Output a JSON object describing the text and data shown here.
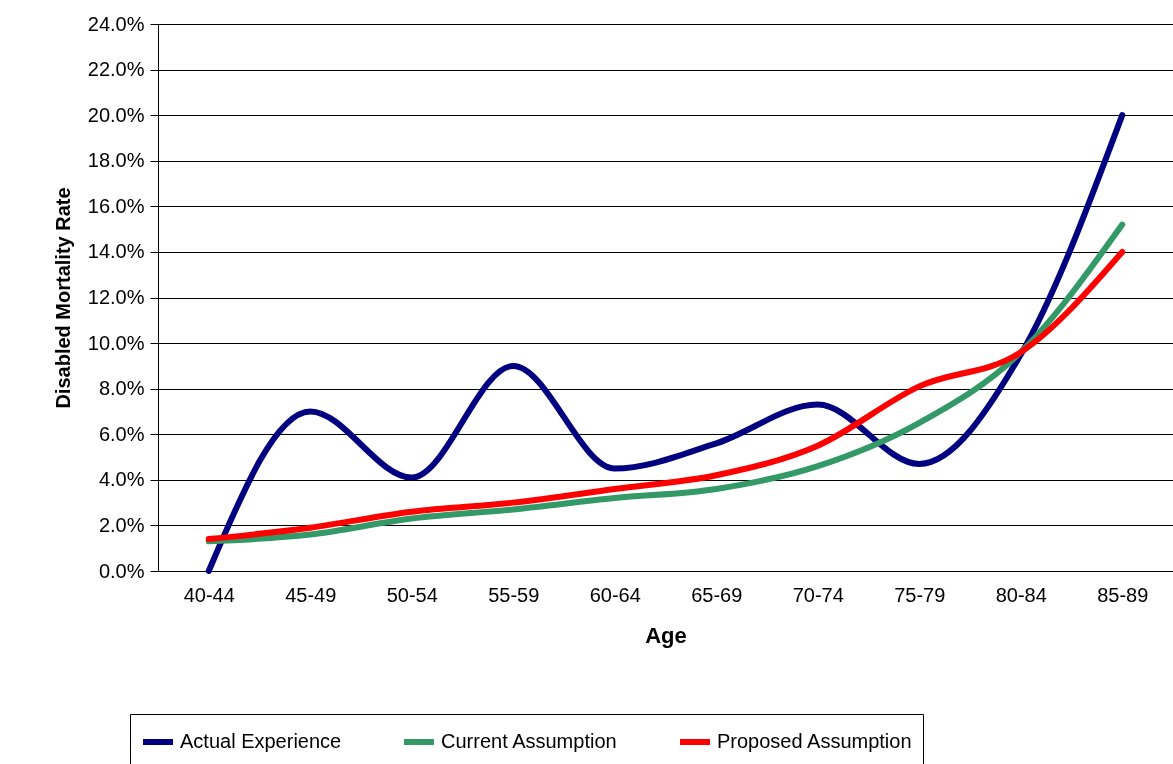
{
  "chart_data": {
    "type": "line",
    "xlabel": "Age",
    "ylabel": "Disabled Mortality Rate",
    "categories": [
      "40-44",
      "45-49",
      "50-54",
      "55-59",
      "60-64",
      "65-69",
      "70-74",
      "75-79",
      "80-84",
      "85-89"
    ],
    "series": [
      {
        "name": "Actual Experience",
        "color": "#000080",
        "values": [
          0.0,
          7.0,
          4.1,
          9.0,
          4.5,
          5.6,
          7.3,
          4.7,
          9.5,
          20.0
        ]
      },
      {
        "name": "Current Assumption",
        "color": "#339966",
        "values": [
          1.3,
          1.6,
          2.3,
          2.7,
          3.2,
          3.6,
          4.6,
          6.5,
          9.6,
          15.2
        ]
      },
      {
        "name": "Proposed Assumption",
        "color": "#ff0000",
        "values": [
          1.4,
          1.9,
          2.6,
          3.0,
          3.6,
          4.2,
          5.5,
          8.1,
          9.6,
          14.0
        ]
      }
    ],
    "ylim": [
      0,
      24
    ],
    "yticks": [
      {
        "value": 0,
        "label": "0.0%"
      },
      {
        "value": 2,
        "label": "2.0%"
      },
      {
        "value": 4,
        "label": "4.0%"
      },
      {
        "value": 6,
        "label": "6.0%"
      },
      {
        "value": 8,
        "label": "8.0%"
      },
      {
        "value": 10,
        "label": "10.0%"
      },
      {
        "value": 12,
        "label": "12.0%"
      },
      {
        "value": 14,
        "label": "14.0%"
      },
      {
        "value": 16,
        "label": "16.0%"
      },
      {
        "value": 18,
        "label": "18.0%"
      },
      {
        "value": 20,
        "label": "20.0%"
      },
      {
        "value": 22,
        "label": "22.0%"
      },
      {
        "value": 24,
        "label": "24.0%"
      }
    ],
    "grid": "y",
    "legend": "bottom",
    "marker": "none",
    "line_style": "solid"
  }
}
